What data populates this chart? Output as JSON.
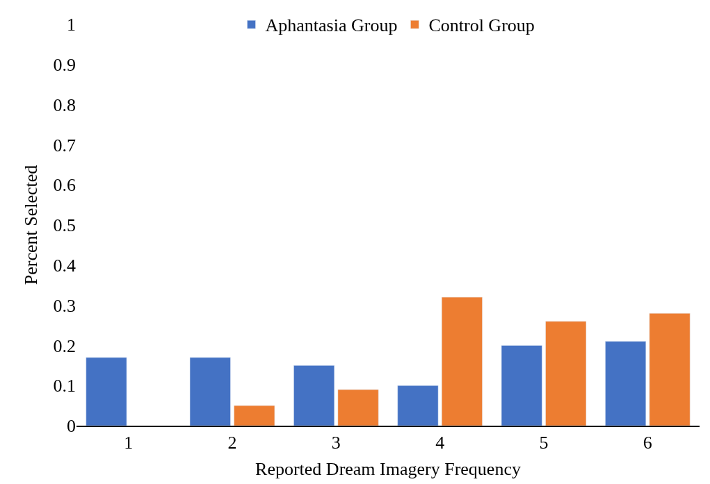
{
  "chart_data": {
    "type": "bar",
    "xlabel": "Reported Dream Imagery Frequency",
    "ylabel": "Percent Selected",
    "categories": [
      "1",
      "2",
      "3",
      "4",
      "5",
      "6"
    ],
    "series": [
      {
        "name": "Aphantasia Group",
        "color": "#4472c4",
        "values": [
          0.17,
          0.17,
          0.15,
          0.1,
          0.2,
          0.21
        ]
      },
      {
        "name": "Control Group",
        "color": "#ed7d31",
        "values": [
          null,
          0.05,
          0.09,
          0.32,
          0.26,
          0.28
        ]
      }
    ],
    "ylim": [
      0,
      1
    ],
    "yticks": [
      0,
      0.1,
      0.2,
      0.3,
      0.4,
      0.5,
      0.6,
      0.7,
      0.8,
      0.9,
      1
    ],
    "legend": "top"
  }
}
